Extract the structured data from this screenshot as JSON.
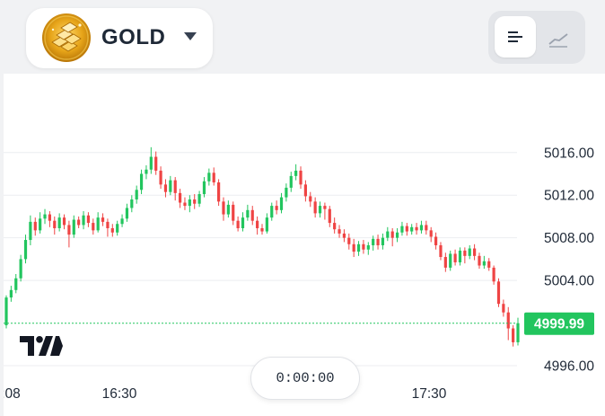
{
  "asset": {
    "name": "GOLD",
    "icon": "gold-bars-icon",
    "dropdown_icon": "caret-down-icon"
  },
  "view_toggle": {
    "options": [
      {
        "name": "candles-view",
        "icon": "candles-icon",
        "active": true
      },
      {
        "name": "line-view",
        "icon": "line-chart-icon",
        "active": false
      }
    ]
  },
  "timer": "0:00:00",
  "colors": {
    "up": "#22c55e",
    "down": "#ef4444",
    "price_tag": "#22c55e",
    "grid": "#eceef1",
    "text": "#1f2937"
  },
  "chart_data": {
    "type": "candlestick",
    "y_ticks": [
      "5016.00",
      "5012.00",
      "5008.00",
      "5004.00",
      "4996.00"
    ],
    "x_ticks": [
      ":08",
      "16:30",
      "17:30"
    ],
    "ylim": [
      4994.4,
      5023.4
    ],
    "current_price": "4999.99",
    "current_price_value": 4999.99,
    "candles": [
      [
        4999.8,
        5002.4,
        4999.5,
        5002.6
      ],
      [
        5002.4,
        5003.1,
        5002.0,
        5003.5
      ],
      [
        5003.1,
        5004.2,
        5002.8,
        5004.6
      ],
      [
        5004.2,
        5006.0,
        5003.9,
        5006.4
      ],
      [
        5006.0,
        5007.8,
        5005.6,
        5008.3
      ],
      [
        5007.8,
        5009.5,
        5007.3,
        5010.1
      ],
      [
        5009.5,
        5008.7,
        5008.2,
        5009.9
      ],
      [
        5008.7,
        5009.8,
        5008.4,
        5010.4
      ],
      [
        5009.8,
        5010.2,
        5009.3,
        5010.7
      ],
      [
        5010.2,
        5009.6,
        5009.0,
        5010.5
      ],
      [
        5009.6,
        5008.9,
        5008.3,
        5010.0
      ],
      [
        5008.9,
        5009.9,
        5008.6,
        5010.3
      ],
      [
        5009.9,
        5009.2,
        5008.8,
        5010.2
      ],
      [
        5009.2,
        5008.3,
        5007.1,
        5009.6
      ],
      [
        5008.3,
        5009.7,
        5008.0,
        5010.1
      ],
      [
        5009.7,
        5009.2,
        5008.9,
        5010.0
      ],
      [
        5009.2,
        5010.1,
        5008.8,
        5010.5
      ],
      [
        5010.1,
        5009.4,
        5009.0,
        5010.4
      ],
      [
        5009.4,
        5008.7,
        5008.3,
        5009.8
      ],
      [
        5008.7,
        5009.9,
        5008.5,
        5010.4
      ],
      [
        5009.9,
        5009.5,
        5009.1,
        5010.3
      ],
      [
        5009.5,
        5008.9,
        5008.1,
        5009.8
      ],
      [
        5008.9,
        5008.5,
        5008.1,
        5009.3
      ],
      [
        5008.5,
        5009.3,
        5008.2,
        5009.6
      ],
      [
        5009.3,
        5009.8,
        5009.0,
        5010.2
      ],
      [
        5009.8,
        5010.8,
        5009.5,
        5011.2
      ],
      [
        5010.8,
        5011.6,
        5010.4,
        5012.0
      ],
      [
        5011.6,
        5012.5,
        5011.2,
        5012.9
      ],
      [
        5012.5,
        5014.0,
        5012.1,
        5014.4
      ],
      [
        5014.0,
        5014.4,
        5013.5,
        5014.8
      ],
      [
        5014.4,
        5015.6,
        5014.0,
        5016.5
      ],
      [
        5015.6,
        5014.3,
        5013.9,
        5016.1
      ],
      [
        5014.3,
        5013.0,
        5012.6,
        5014.7
      ],
      [
        5013.0,
        5012.3,
        5011.8,
        5013.5
      ],
      [
        5012.3,
        5013.4,
        5012.0,
        5013.8
      ],
      [
        5013.4,
        5012.2,
        5011.5,
        5013.7
      ],
      [
        5012.2,
        5011.3,
        5010.8,
        5012.6
      ],
      [
        5011.3,
        5011.0,
        5010.6,
        5011.8
      ],
      [
        5011.0,
        5011.6,
        5010.4,
        5012.0
      ],
      [
        5011.6,
        5011.2,
        5010.7,
        5012.1
      ],
      [
        5011.2,
        5012.1,
        5010.9,
        5012.4
      ],
      [
        5012.1,
        5013.3,
        5011.8,
        5013.7
      ],
      [
        5013.3,
        5014.1,
        5012.9,
        5014.5
      ],
      [
        5014.1,
        5013.2,
        5012.9,
        5014.6
      ],
      [
        5013.2,
        5011.4,
        5011.0,
        5013.5
      ],
      [
        5011.4,
        5010.2,
        5009.6,
        5011.8
      ],
      [
        5010.2,
        5011.1,
        5009.9,
        5011.5
      ],
      [
        5011.1,
        5009.6,
        5009.2,
        5011.4
      ],
      [
        5009.6,
        5008.9,
        5008.6,
        5010.0
      ],
      [
        5008.9,
        5009.9,
        5008.6,
        5010.4
      ],
      [
        5009.9,
        5010.6,
        5009.6,
        5011.1
      ],
      [
        5010.6,
        5009.6,
        5009.2,
        5011.0
      ],
      [
        5009.6,
        5008.9,
        5008.3,
        5010.0
      ],
      [
        5008.9,
        5008.6,
        5008.3,
        5009.3
      ],
      [
        5008.6,
        5009.9,
        5008.4,
        5010.3
      ],
      [
        5009.9,
        5011.0,
        5009.6,
        5011.3
      ],
      [
        5011.0,
        5010.6,
        5010.2,
        5011.5
      ],
      [
        5010.6,
        5011.8,
        5010.3,
        5012.2
      ],
      [
        5011.8,
        5012.7,
        5011.4,
        5013.1
      ],
      [
        5012.7,
        5013.8,
        5012.3,
        5014.2
      ],
      [
        5013.8,
        5014.3,
        5013.4,
        5014.9
      ],
      [
        5014.3,
        5013.0,
        5012.6,
        5014.7
      ],
      [
        5013.0,
        5011.9,
        5011.4,
        5013.4
      ],
      [
        5011.9,
        5011.4,
        5010.9,
        5012.3
      ],
      [
        5011.4,
        5010.3,
        5009.9,
        5011.8
      ],
      [
        5010.3,
        5011.0,
        5009.9,
        5011.4
      ],
      [
        5011.0,
        5010.7,
        5009.7,
        5011.3
      ],
      [
        5010.7,
        5009.4,
        5009.0,
        5011.0
      ],
      [
        5009.4,
        5008.8,
        5008.4,
        5009.9
      ],
      [
        5008.8,
        5008.4,
        5008.0,
        5009.2
      ],
      [
        5008.4,
        5008.0,
        5007.6,
        5008.8
      ],
      [
        5008.0,
        5007.4,
        5006.9,
        5008.4
      ],
      [
        5007.4,
        5006.7,
        5006.2,
        5007.9
      ],
      [
        5006.7,
        5007.4,
        5006.3,
        5007.7
      ],
      [
        5007.4,
        5006.9,
        5006.5,
        5007.8
      ],
      [
        5006.9,
        5007.3,
        5006.4,
        5007.6
      ],
      [
        5007.3,
        5007.9,
        5006.8,
        5008.2
      ],
      [
        5007.9,
        5007.3,
        5006.9,
        5008.3
      ],
      [
        5007.3,
        5008.0,
        5006.9,
        5008.4
      ],
      [
        5008.0,
        5008.6,
        5007.7,
        5009.0
      ],
      [
        5008.6,
        5008.0,
        5007.2,
        5008.9
      ],
      [
        5008.0,
        5008.5,
        5007.6,
        5008.9
      ],
      [
        5008.5,
        5009.1,
        5008.2,
        5009.5
      ],
      [
        5009.1,
        5008.6,
        5008.2,
        5009.4
      ],
      [
        5008.6,
        5009.0,
        5008.3,
        5009.3
      ],
      [
        5009.0,
        5008.7,
        5008.3,
        5009.4
      ],
      [
        5008.7,
        5009.2,
        5008.4,
        5009.6
      ],
      [
        5009.2,
        5008.7,
        5008.3,
        5009.6
      ],
      [
        5008.7,
        5008.1,
        5007.6,
        5009.0
      ],
      [
        5008.1,
        5007.3,
        5006.9,
        5008.5
      ],
      [
        5007.3,
        5006.2,
        5005.9,
        5007.6
      ],
      [
        5006.2,
        5005.2,
        5004.8,
        5006.6
      ],
      [
        5005.2,
        5006.5,
        5004.9,
        5006.8
      ],
      [
        5006.5,
        5005.7,
        5005.4,
        5006.9
      ],
      [
        5005.7,
        5006.8,
        5005.4,
        5007.1
      ],
      [
        5006.8,
        5006.3,
        5005.6,
        5007.1
      ],
      [
        5006.3,
        5007.0,
        5006.0,
        5007.3
      ],
      [
        5007.0,
        5006.3,
        5005.9,
        5007.4
      ],
      [
        5006.3,
        5005.4,
        5005.1,
        5006.6
      ],
      [
        5005.4,
        5005.8,
        5005.1,
        5006.3
      ],
      [
        5005.8,
        5005.2,
        5004.9,
        5006.1
      ],
      [
        5005.2,
        5003.9,
        5003.6,
        5005.4
      ],
      [
        5003.9,
        5001.8,
        5001.5,
        5004.2
      ],
      [
        5001.8,
        5001.0,
        5000.6,
        5002.2
      ],
      [
        5001.0,
        4999.5,
        4998.4,
        5001.5
      ],
      [
        4999.5,
        4998.2,
        4997.8,
        4999.8
      ],
      [
        4998.2,
        4999.99,
        4997.9,
        5000.5
      ]
    ]
  }
}
